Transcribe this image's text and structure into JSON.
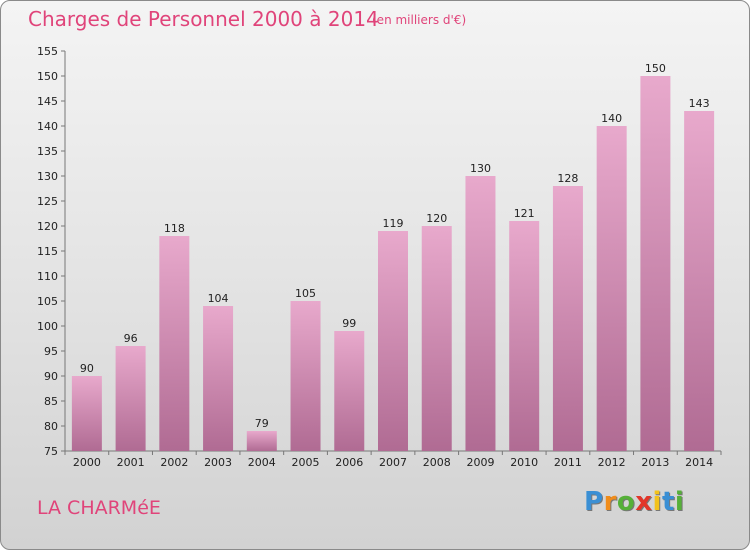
{
  "header": {
    "title": "Charges de Personnel 2000 à 2014",
    "subtitle": "(en milliers d'€)"
  },
  "footer": {
    "commune": "LA CHARMéE",
    "logo_letters": [
      "P",
      "r",
      "o",
      "x",
      "i",
      "t",
      "i"
    ],
    "logo_colors": [
      "#3a8fd4",
      "#f08c1a",
      "#56b039",
      "#e2362a",
      "#f3c21b",
      "#3a8fd4",
      "#56b039"
    ]
  },
  "colors": {
    "bar_light": "#e8a9cc",
    "bar_dark": "#b06b93",
    "accent": "#e0447a"
  },
  "chart_data": {
    "type": "bar",
    "title": "Charges de Personnel 2000 à 2014",
    "subtitle": "(en milliers d'€)",
    "xlabel": "",
    "ylabel": "",
    "categories": [
      "2000",
      "2001",
      "2002",
      "2003",
      "2004",
      "2005",
      "2006",
      "2007",
      "2008",
      "2009",
      "2010",
      "2011",
      "2012",
      "2013",
      "2014"
    ],
    "values": [
      90,
      96,
      118,
      104,
      79,
      105,
      99,
      119,
      120,
      130,
      121,
      128,
      140,
      150,
      143
    ],
    "ylim": [
      75,
      155
    ],
    "yticks": [
      75,
      80,
      85,
      90,
      95,
      100,
      105,
      110,
      115,
      120,
      125,
      130,
      135,
      140,
      145,
      150,
      155
    ],
    "grid": false,
    "data_labels": true
  }
}
